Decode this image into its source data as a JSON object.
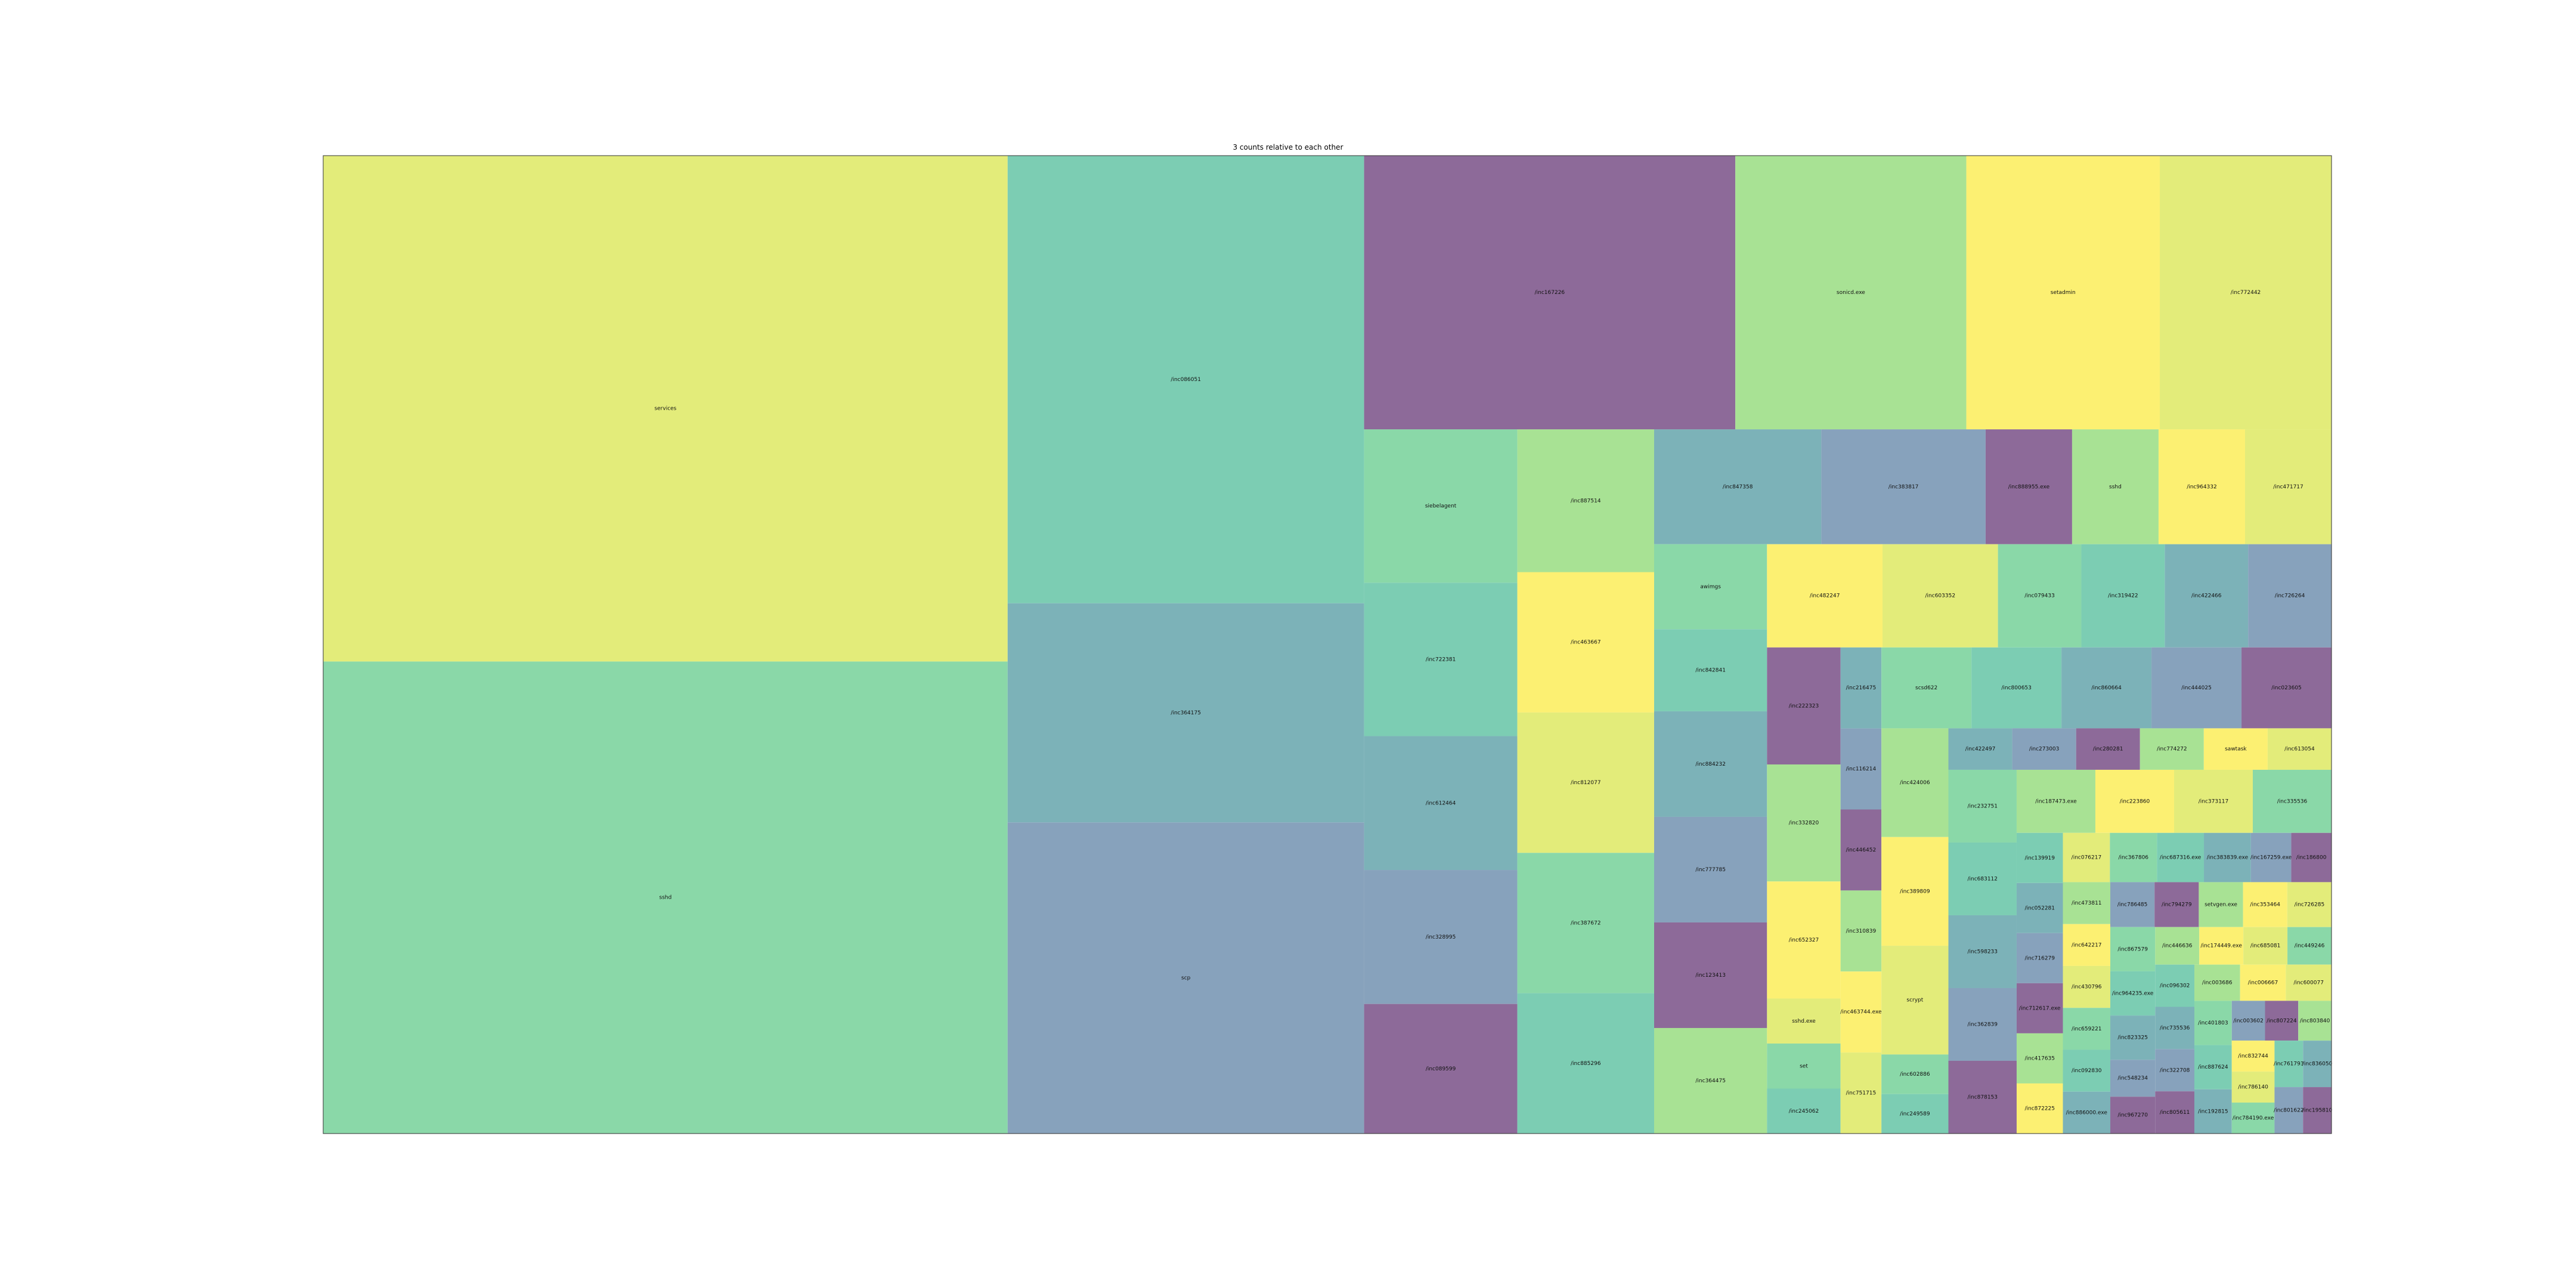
{
  "chart_data": {
    "type": "treemap",
    "title": "3 counts relative to each other",
    "colors": [
      "#e3ec7a",
      "#8ad8a8",
      "#7ccdb3",
      "#7cb2b8",
      "#87a2bc",
      "#8d6a99",
      "#a8e294",
      "#fcf072"
    ],
    "items": [
      {
        "label": "services",
        "value": 1046
      },
      {
        "label": "sshd",
        "value": 976
      },
      {
        "label": "/inc086051",
        "value": 482
      },
      {
        "label": "/inc364175",
        "value": 236
      },
      {
        "label": "scp",
        "value": 335
      },
      {
        "label": "/inc167226",
        "value": 307
      },
      {
        "label": "sonicd.exe",
        "value": 191
      },
      {
        "label": "setadmin",
        "value": 160
      },
      {
        "label": "/inc772442",
        "value": 142
      },
      {
        "label": "siebelagent",
        "value": 71
      },
      {
        "label": "/inc722381",
        "value": 71
      },
      {
        "label": "/inc612464",
        "value": 62
      },
      {
        "label": "/inc328995",
        "value": 62
      },
      {
        "label": "/inc089599",
        "value": 60
      },
      {
        "label": "/inc887514",
        "value": 59
      },
      {
        "label": "/inc463667",
        "value": 58
      },
      {
        "label": "/inc812077",
        "value": 58
      },
      {
        "label": "/inc387672",
        "value": 58
      },
      {
        "label": "/inc885296",
        "value": 58
      },
      {
        "label": "/inc847358",
        "value": 58
      },
      {
        "label": "/inc383817",
        "value": 57
      },
      {
        "label": "/inc888955.exe",
        "value": 30
      },
      {
        "label": "sshd",
        "value": 30
      },
      {
        "label": "/inc964332",
        "value": 30
      },
      {
        "label": "/inc471717",
        "value": 30
      },
      {
        "label": "awimgs",
        "value": 29
      },
      {
        "label": "/inc842841",
        "value": 28
      },
      {
        "label": "/inc884232",
        "value": 36
      },
      {
        "label": "/inc777785",
        "value": 36
      },
      {
        "label": "/inc123413",
        "value": 36
      },
      {
        "label": "/inc364475",
        "value": 36
      },
      {
        "label": "/inc482247",
        "value": 36
      },
      {
        "label": "/inc603352",
        "value": 36
      },
      {
        "label": "/inc079433",
        "value": 26
      },
      {
        "label": "/inc319422",
        "value": 26
      },
      {
        "label": "/inc422466",
        "value": 26
      },
      {
        "label": "/inc726264",
        "value": 26
      },
      {
        "label": "/inc222323",
        "value": 26
      },
      {
        "label": "/inc332820",
        "value": 26
      },
      {
        "label": "/inc652327",
        "value": 26
      },
      {
        "label": "sshd.exe",
        "value": 10
      },
      {
        "label": "set",
        "value": 10
      },
      {
        "label": "/inc245062",
        "value": 10
      },
      {
        "label": "/inc216475",
        "value": 10
      },
      {
        "label": "/inc116214",
        "value": 10
      },
      {
        "label": "/inc446452",
        "value": 10
      },
      {
        "label": "/inc310839",
        "value": 10
      },
      {
        "label": "/inc463744.exe",
        "value": 10
      },
      {
        "label": "/inc751715",
        "value": 10
      },
      {
        "label": "scsd622",
        "value": 22
      },
      {
        "label": "/inc800653",
        "value": 22
      },
      {
        "label": "/inc860664",
        "value": 22
      },
      {
        "label": "/inc444025",
        "value": 22
      },
      {
        "label": "/inc023605",
        "value": 22
      },
      {
        "label": "/inc424006",
        "value": 22
      },
      {
        "label": "/inc389809",
        "value": 22
      },
      {
        "label": "scrypt",
        "value": 22
      },
      {
        "label": "/inc602886",
        "value": 8
      },
      {
        "label": "/inc249589",
        "value": 8
      },
      {
        "label": "/inc422497",
        "value": 8
      },
      {
        "label": "/inc273003",
        "value": 8
      },
      {
        "label": "/inc280281",
        "value": 8
      },
      {
        "label": "/inc774272",
        "value": 8
      },
      {
        "label": "sawtask",
        "value": 8
      },
      {
        "label": "/inc613054",
        "value": 8
      },
      {
        "label": "/inc232751",
        "value": 15
      },
      {
        "label": "/inc683112",
        "value": 15
      },
      {
        "label": "/inc598233",
        "value": 15
      },
      {
        "label": "/inc362839",
        "value": 15
      },
      {
        "label": "/inc878153",
        "value": 15
      },
      {
        "label": "/inc187473.exe",
        "value": 15
      },
      {
        "label": "/inc223860",
        "value": 15
      },
      {
        "label": "/inc373117",
        "value": 15
      },
      {
        "label": "/inc335536",
        "value": 15
      },
      {
        "label": "/inc139919",
        "value": 7
      },
      {
        "label": "/inc052281",
        "value": 7
      },
      {
        "label": "/inc716279",
        "value": 7
      },
      {
        "label": "/inc712617.exe",
        "value": 7
      },
      {
        "label": "/inc417635",
        "value": 7
      },
      {
        "label": "/inc872225",
        "value": 7
      },
      {
        "label": "/inc076217",
        "value": 7
      },
      {
        "label": "/inc367806",
        "value": 7
      },
      {
        "label": "/inc687316.exe",
        "value": 7
      },
      {
        "label": "/inc383839.exe",
        "value": 7
      },
      {
        "label": "/inc167259.exe",
        "value": 6
      },
      {
        "label": "/inc186800",
        "value": 6
      },
      {
        "label": "/inc473811",
        "value": 6
      },
      {
        "label": "/inc642217",
        "value": 6
      },
      {
        "label": "/inc430796",
        "value": 6
      },
      {
        "label": "/inc659221",
        "value": 6
      },
      {
        "label": "/inc092830",
        "value": 6
      },
      {
        "label": "/inc886000.exe",
        "value": 6
      },
      {
        "label": "/inc786485",
        "value": 6
      },
      {
        "label": "/inc794279",
        "value": 6
      },
      {
        "label": "setvgen.exe",
        "value": 6
      },
      {
        "label": "/inc353464",
        "value": 6
      },
      {
        "label": "/inc726285",
        "value": 6
      },
      {
        "label": "/inc867579",
        "value": 6
      },
      {
        "label": "/inc964235.exe",
        "value": 6
      },
      {
        "label": "/inc823325",
        "value": 6
      },
      {
        "label": "/inc548234",
        "value": 5
      },
      {
        "label": "/inc967270",
        "value": 5
      },
      {
        "label": "/inc446636",
        "value": 5
      },
      {
        "label": "/inc174449.exe",
        "value": 5
      },
      {
        "label": "/inc685081",
        "value": 5
      },
      {
        "label": "/inc449246",
        "value": 5
      },
      {
        "label": "/inc096302",
        "value": 5
      },
      {
        "label": "/inc735536",
        "value": 5
      },
      {
        "label": "/inc322708",
        "value": 5
      },
      {
        "label": "/inc805611",
        "value": 5
      },
      {
        "label": "/inc003686",
        "value": 5
      },
      {
        "label": "/inc006667",
        "value": 5
      },
      {
        "label": "/inc600077",
        "value": 5
      },
      {
        "label": "/inc401803",
        "value": 5
      },
      {
        "label": "/inc887624",
        "value": 5
      },
      {
        "label": "/inc192815",
        "value": 5
      },
      {
        "label": "/inc003602",
        "value": 4
      },
      {
        "label": "/inc807224",
        "value": 4
      },
      {
        "label": "/inc803840",
        "value": 4
      },
      {
        "label": "/inc832744",
        "value": 4
      },
      {
        "label": "/inc786140",
        "value": 4
      },
      {
        "label": "/inc784190.exe",
        "value": 4
      },
      {
        "label": "/inc761793",
        "value": 4
      },
      {
        "label": "/inc836050",
        "value": 4
      },
      {
        "label": "/inc801622",
        "value": 4
      },
      {
        "label": "/inc195810",
        "value": 4
      }
    ]
  }
}
